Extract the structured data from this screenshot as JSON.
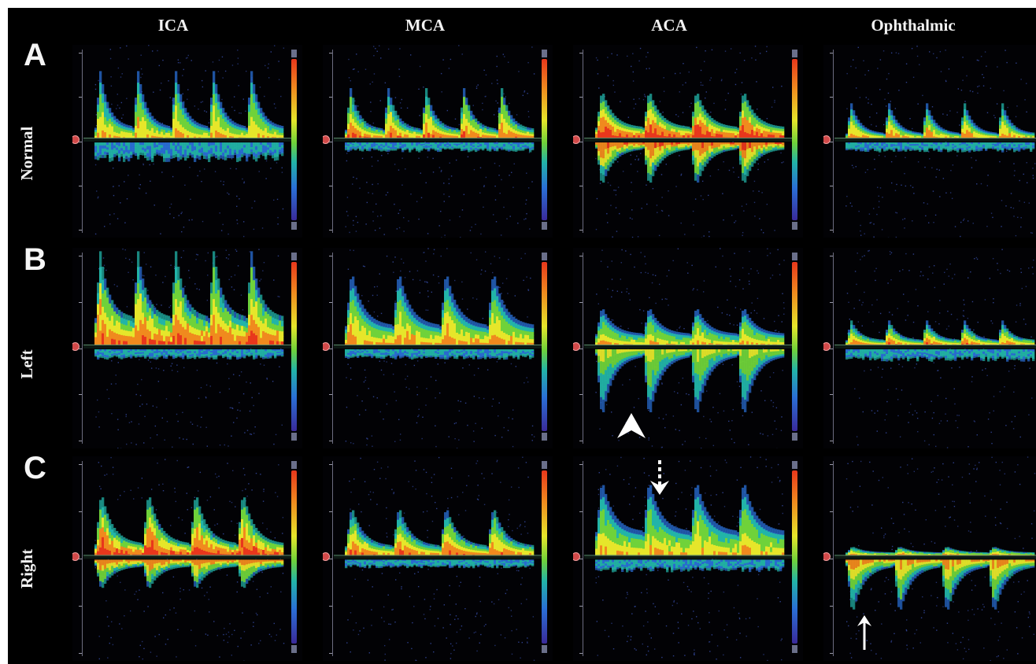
{
  "columns": [
    {
      "label": "ICA"
    },
    {
      "label": "MCA"
    },
    {
      "label": "ACA"
    },
    {
      "label": "Ophthalmic"
    }
  ],
  "rows": [
    {
      "letter": "A",
      "label": "Normal"
    },
    {
      "letter": "B",
      "label": "Left"
    },
    {
      "letter": "C",
      "label": "Right"
    }
  ],
  "colors": {
    "background": "#000000",
    "spectrum_high": "#e8371c",
    "spectrum_mid": "#e6e62a",
    "spectrum_low": "#2a6fd6",
    "baseline_marker": "#d24a4a",
    "annotation": "#ffffff"
  },
  "annotations": [
    {
      "panel": "B-ACA",
      "icon": "arrowhead-icon",
      "meaning": "reversed ACA flow"
    },
    {
      "panel": "C-ACA",
      "icon": "dashed-arrow-down-icon",
      "meaning": "ACA waveform"
    },
    {
      "panel": "C-Ophthalmic",
      "icon": "arrow-up-icon",
      "meaning": "reversed ophthalmic flow"
    }
  ]
}
